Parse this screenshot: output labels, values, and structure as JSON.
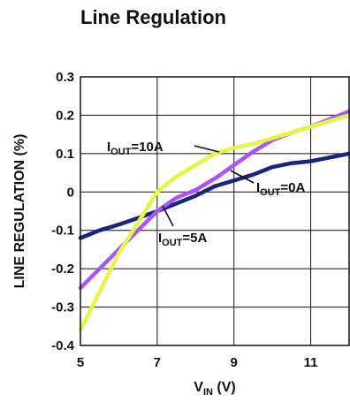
{
  "chart_data": {
    "type": "line",
    "title": "Line Regulation",
    "xlabel": {
      "main": "V",
      "sub": "IN",
      "suffix": " (V)"
    },
    "ylabel": "LINE REGULATION (%)",
    "xlim": [
      5,
      12
    ],
    "ylim": [
      -0.4,
      0.3
    ],
    "xticks": [
      5,
      7,
      9,
      11
    ],
    "yticks": [
      0.3,
      0.2,
      0.1,
      0,
      -0.1,
      -0.2,
      -0.3,
      -0.4
    ],
    "xtick_labels": [
      "5",
      "7",
      "9",
      "11"
    ],
    "ytick_labels": [
      "0.3",
      "0.2",
      "0.1",
      "0",
      "-0.1",
      "-0.2",
      "-0.3",
      "-0.4"
    ],
    "grid": true,
    "series": [
      {
        "color": "#1a237e",
        "x": [
          5,
          5.5,
          6,
          6.5,
          7,
          7.5,
          8,
          8.5,
          9,
          9.5,
          10,
          10.5,
          11,
          11.5,
          12
        ],
        "y": [
          -0.12,
          -0.1,
          -0.085,
          -0.068,
          -0.05,
          -0.03,
          -0.01,
          0.015,
          0.03,
          0.045,
          0.065,
          0.075,
          0.08,
          0.09,
          0.1
        ]
      },
      {
        "color": "#a855f7",
        "x": [
          5,
          5.5,
          6,
          6.5,
          7,
          7.5,
          8,
          8.5,
          9,
          9.5,
          10,
          10.5,
          11,
          11.5,
          12
        ],
        "y": [
          -0.25,
          -0.2,
          -0.15,
          -0.1,
          -0.05,
          -0.015,
          0.005,
          0.035,
          0.07,
          0.105,
          0.135,
          0.155,
          0.17,
          0.19,
          0.21
        ]
      },
      {
        "color": "#e6f542",
        "x": [
          5,
          5.5,
          6,
          6.5,
          7,
          7.5,
          8,
          8.5,
          9,
          9.5,
          10,
          10.5,
          11,
          11.5,
          12
        ],
        "y": [
          -0.36,
          -0.26,
          -0.16,
          -0.08,
          0.0,
          0.04,
          0.07,
          0.1,
          0.115,
          0.125,
          0.14,
          0.155,
          0.17,
          0.185,
          0.2
        ]
      }
    ],
    "annotations": [
      {
        "main": "I",
        "sub": "OUT",
        "suffix": "=10A"
      },
      {
        "main": "I",
        "sub": "OUT",
        "suffix": "=0A"
      },
      {
        "main": "I",
        "sub": "OUT",
        "suffix": "=5A"
      }
    ]
  }
}
